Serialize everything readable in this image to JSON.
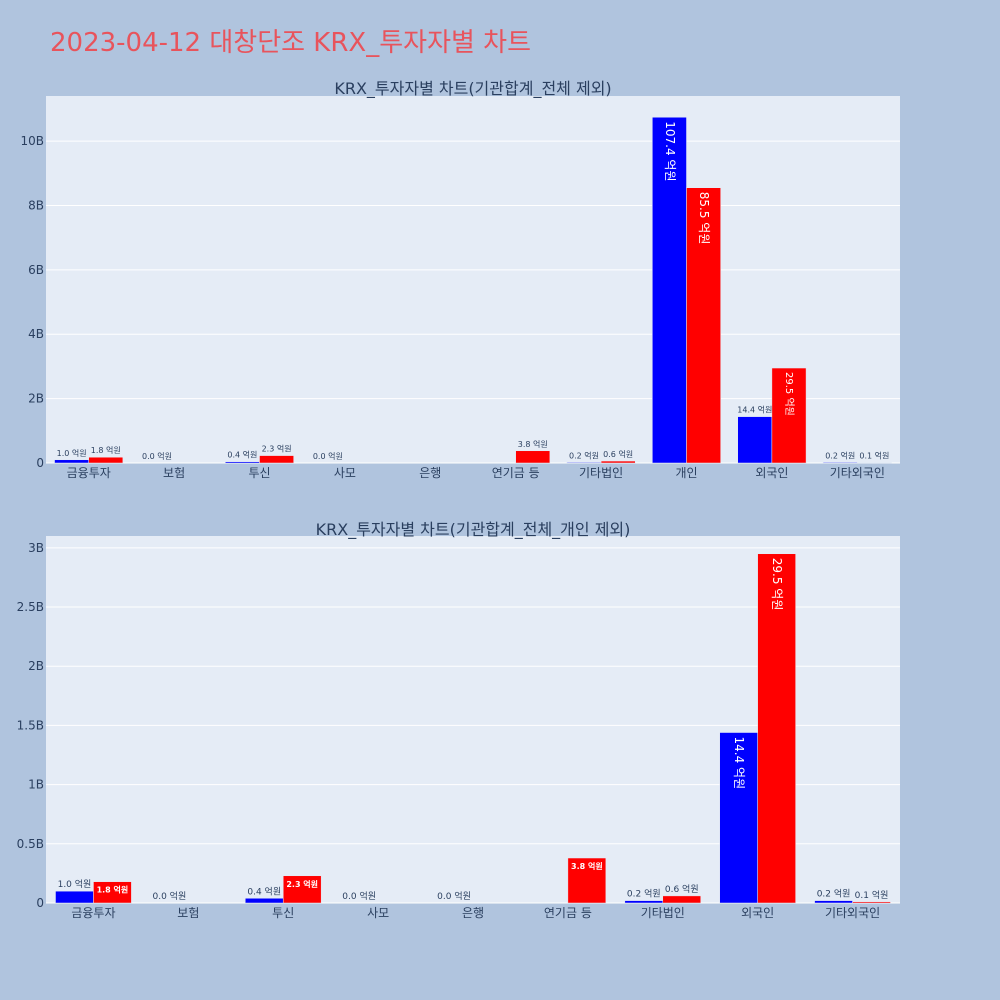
{
  "page": {
    "title": "2023-04-12 대창단조 KRX_투자자별 차트",
    "title_color": "#e8545c",
    "background": "#b0c4de",
    "plot_background": "#e5ecf6"
  },
  "chart_data": [
    {
      "type": "bar",
      "title": "KRX_투자자별 차트(기관합계_전체 제외)",
      "categories": [
        "금융투자",
        "보험",
        "투신",
        "사모",
        "은행",
        "연기금 등",
        "기타법인",
        "개인",
        "외국인",
        "기타외국인"
      ],
      "ylim": [
        0,
        11400000000
      ],
      "yticks": [
        0,
        2000000000,
        4000000000,
        6000000000,
        8000000000,
        10000000000
      ],
      "ytick_labels": [
        "0",
        "2B",
        "4B",
        "6B",
        "8B",
        "10B"
      ],
      "grid": true,
      "series": [
        {
          "color": "#0000ff",
          "values": [
            100000000,
            0,
            40000000,
            0,
            0,
            0,
            20000000,
            10740000000,
            1440000000,
            20000000
          ],
          "labels": [
            "1.0 억원",
            "0.0 억원",
            "0.4 억원",
            "0.0 억원",
            "",
            "",
            "0.2 억원",
            "107.4 억원",
            "14.4 억원",
            "0.2 억원"
          ]
        },
        {
          "color": "#ff0000",
          "values": [
            180000000,
            0,
            230000000,
            0,
            0,
            380000000,
            60000000,
            8550000000,
            2950000000,
            10000000
          ],
          "labels": [
            "1.8 억원",
            "",
            "2.3 억원",
            "",
            "",
            "3.8 억원",
            "0.6 억원",
            "85.5 억원",
            "29.5 억원",
            "0.1 억원"
          ]
        }
      ]
    },
    {
      "type": "bar",
      "title": "KRX_투자자별 차트(기관합계_전체_개인 제외)",
      "categories": [
        "금융투자",
        "보험",
        "투신",
        "사모",
        "은행",
        "연기금 등",
        "기타법인",
        "외국인",
        "기타외국인"
      ],
      "ylim": [
        0,
        3100000000
      ],
      "yticks": [
        0,
        500000000,
        1000000000,
        1500000000,
        2000000000,
        2500000000,
        3000000000
      ],
      "ytick_labels": [
        "0",
        "0.5B",
        "1B",
        "1.5B",
        "2B",
        "2.5B",
        "3B"
      ],
      "grid": true,
      "series": [
        {
          "color": "#0000ff",
          "values": [
            100000000,
            0,
            40000000,
            0,
            0,
            0,
            20000000,
            1440000000,
            20000000
          ],
          "labels": [
            "1.0 억원",
            "0.0 억원",
            "0.4 억원",
            "0.0 억원",
            "0.0 억원",
            "",
            "0.2 억원",
            "14.4 억원",
            "0.2 억원"
          ]
        },
        {
          "color": "#ff0000",
          "values": [
            180000000,
            0,
            230000000,
            0,
            0,
            380000000,
            60000000,
            2950000000,
            10000000
          ],
          "labels": [
            "1.8 억원",
            "",
            "2.3 억원",
            "",
            "",
            "3.8 억원",
            "0.6 억원",
            "29.5 억원",
            "0.1 억원"
          ]
        }
      ]
    }
  ]
}
